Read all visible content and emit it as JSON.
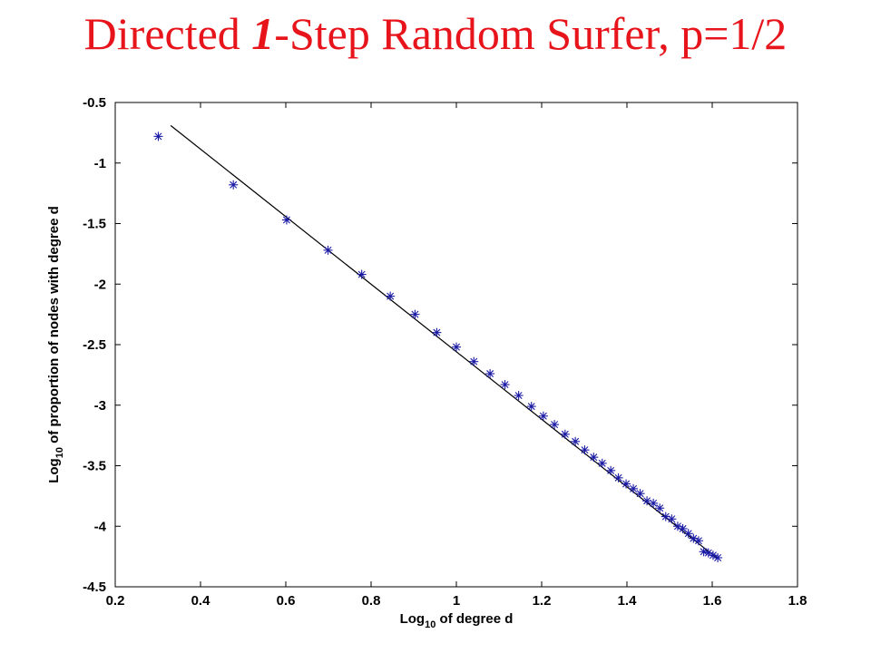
{
  "slide": {
    "title_prefix": "Directed ",
    "title_emphasis": "1",
    "title_suffix": "-Step Random Surfer, p=1/2"
  },
  "chart_data": {
    "type": "scatter",
    "xlabel": {
      "base": "Log",
      "sub": "10",
      "rest": " of degree d"
    },
    "ylabel": {
      "base": "Log",
      "sub": "10",
      "rest": " of proportion of nodes with degree d"
    },
    "xlim": [
      0.2,
      1.8
    ],
    "ylim": [
      -4.5,
      -0.5
    ],
    "x_ticks": [
      "0.2",
      "0.4",
      "0.6",
      "0.8",
      "1",
      "1.2",
      "1.4",
      "1.6",
      "1.8"
    ],
    "y_ticks": [
      "-0.5",
      "-1",
      "-1.5",
      "-2",
      "-2.5",
      "-3",
      "-3.5",
      "-4",
      "-4.5"
    ],
    "grid": false,
    "series": [
      {
        "kind": "scatter",
        "marker": "*",
        "color": "#1a1aa6",
        "points": [
          [
            0.301,
            -0.78
          ],
          [
            0.477,
            -1.18
          ],
          [
            0.602,
            -1.47
          ],
          [
            0.699,
            -1.72
          ],
          [
            0.778,
            -1.92
          ],
          [
            0.845,
            -2.1
          ],
          [
            0.903,
            -2.25
          ],
          [
            0.954,
            -2.4
          ],
          [
            1.0,
            -2.52
          ],
          [
            1.041,
            -2.64
          ],
          [
            1.079,
            -2.74
          ],
          [
            1.114,
            -2.83
          ],
          [
            1.146,
            -2.92
          ],
          [
            1.176,
            -3.01
          ],
          [
            1.204,
            -3.09
          ],
          [
            1.23,
            -3.16
          ],
          [
            1.255,
            -3.24
          ],
          [
            1.279,
            -3.3
          ],
          [
            1.301,
            -3.37
          ],
          [
            1.322,
            -3.43
          ],
          [
            1.342,
            -3.48
          ],
          [
            1.362,
            -3.54
          ],
          [
            1.38,
            -3.6
          ],
          [
            1.398,
            -3.65
          ],
          [
            1.415,
            -3.69
          ],
          [
            1.431,
            -3.73
          ],
          [
            1.447,
            -3.79
          ],
          [
            1.462,
            -3.81
          ],
          [
            1.477,
            -3.85
          ],
          [
            1.491,
            -3.92
          ],
          [
            1.505,
            -3.94
          ],
          [
            1.519,
            -4.0
          ],
          [
            1.531,
            -4.02
          ],
          [
            1.544,
            -4.06
          ],
          [
            1.556,
            -4.1
          ],
          [
            1.568,
            -4.12
          ],
          [
            1.58,
            -4.21
          ],
          [
            1.591,
            -4.22
          ],
          [
            1.602,
            -4.24
          ],
          [
            1.613,
            -4.26
          ]
        ]
      },
      {
        "kind": "line",
        "color": "#000000",
        "points": [
          [
            0.33,
            -0.69
          ],
          [
            1.61,
            -4.26
          ]
        ]
      }
    ]
  }
}
